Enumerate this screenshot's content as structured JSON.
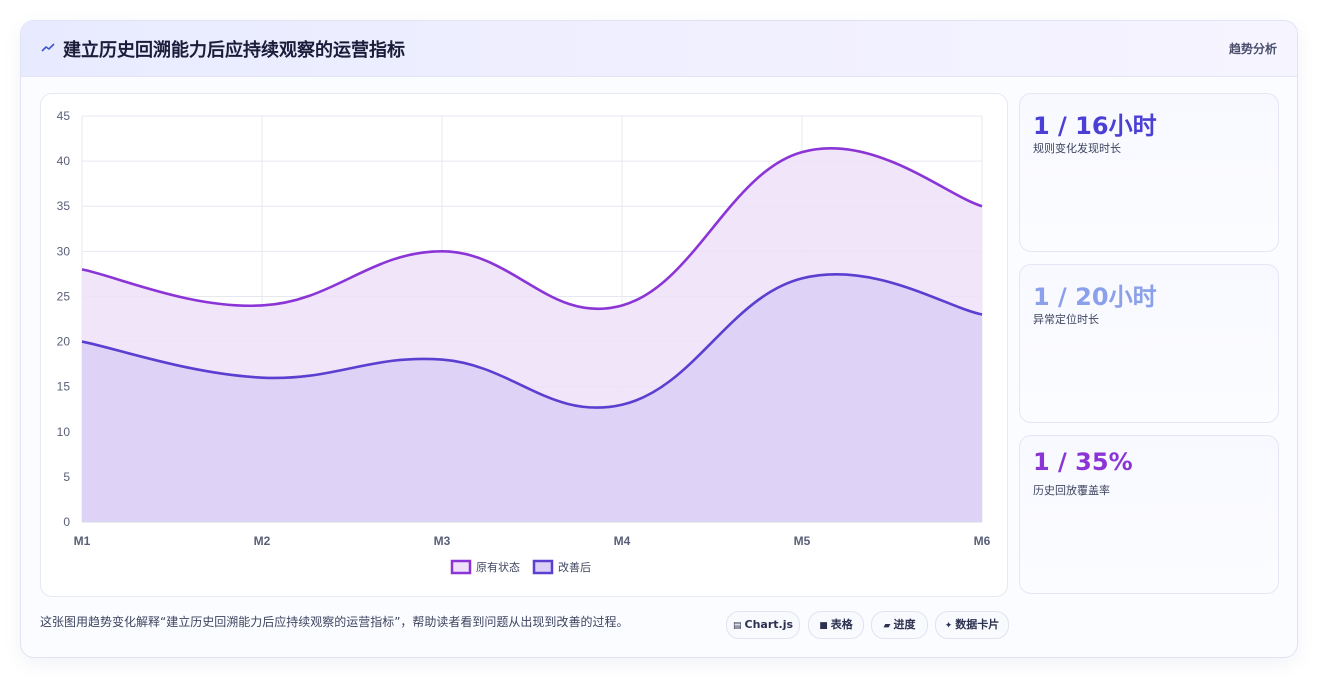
{
  "header": {
    "title": "建立历史回溯能力后应持续观察的运营指标",
    "tag": "趋势分析"
  },
  "chart_data": {
    "type": "area",
    "categories": [
      "M1",
      "M2",
      "M3",
      "M4",
      "M5",
      "M6"
    ],
    "ylim": [
      0,
      45
    ],
    "yticks": [
      0,
      5,
      10,
      15,
      20,
      25,
      30,
      35,
      40,
      45
    ],
    "grid": true,
    "legend_position": "bottom",
    "series": [
      {
        "name": "原有状态",
        "values": [
          28,
          24,
          30,
          24,
          41,
          35
        ],
        "color": "#8b35d6",
        "fill": "#efe1f8"
      },
      {
        "name": "改善后",
        "values": [
          20,
          16,
          18,
          13,
          27,
          23
        ],
        "color": "#5a3fd0",
        "fill": "#dccff7"
      }
    ]
  },
  "kpis": [
    {
      "value": "1 / 16小时",
      "label": "规则变化发现时长",
      "color": "#4b3fd6"
    },
    {
      "value": "1 / 20小时",
      "label": "异常定位时长",
      "color": "#8aa0ea"
    },
    {
      "value": "1 / 35%",
      "label": "历史回放覆盖率",
      "color": "#8b35d6"
    }
  ],
  "caption": "这张图用趋势变化解释“建立历史回溯能力后应持续观察的运营指标”，帮助读者看到问题从出现到改善的过程。",
  "chips": [
    {
      "icon": "▤",
      "label": "Chart.js"
    },
    {
      "icon": "■",
      "label": "表格"
    },
    {
      "icon": "▰",
      "label": "进度"
    },
    {
      "icon": "✦",
      "label": "数据卡片"
    }
  ]
}
